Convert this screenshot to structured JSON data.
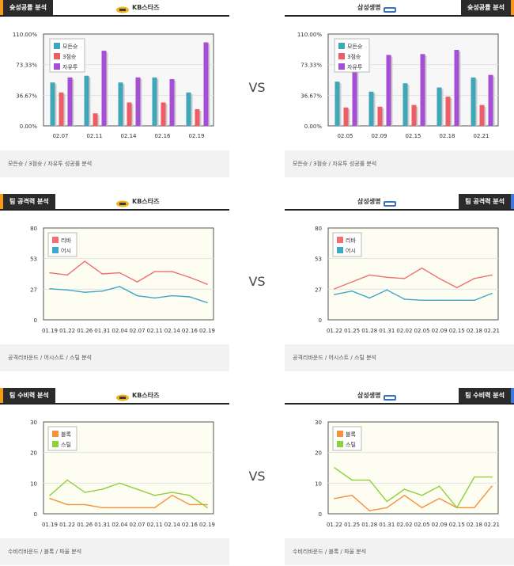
{
  "vs_label": "VS",
  "colors": {
    "total": "#3fa7b8",
    "three": "#ee5d66",
    "free": "#a64fd6",
    "rebound": "#f07070",
    "assist": "#3fa7c6",
    "block": "#f5913b",
    "steal": "#8fcf3a"
  },
  "panels": [
    {
      "tab": "슛성공률 분석",
      "tab_side": "left",
      "tab_color": "orange",
      "team": "KB스타즈",
      "team_side": "right",
      "logo": "kb-logo-icon",
      "footer": "모든슛 / 3점슛 / 자유투 성공률 분석"
    },
    {
      "tab": "슛성공률 분석",
      "tab_side": "right",
      "tab_color": "orange",
      "team": "삼성생명",
      "team_side": "left",
      "logo": "samsung-logo-icon",
      "footer": "모든슛 / 3점슛 / 자유투 성공률 분석"
    },
    {
      "tab": "팀 공격력 분석",
      "tab_side": "left",
      "tab_color": "orange",
      "team": "KB스타즈",
      "team_side": "right",
      "logo": "kb-logo-icon",
      "footer": "공격리바운드 / 어시스트 / 스틸 분석"
    },
    {
      "tab": "팀 공격력 분석",
      "tab_side": "right",
      "tab_color": "blue",
      "team": "삼성생명",
      "team_side": "left",
      "logo": "samsung-logo-icon",
      "footer": "공격리바운드 / 어시스트 / 스틸 분석"
    },
    {
      "tab": "팀 수비력 분석",
      "tab_side": "left",
      "tab_color": "orange",
      "team": "KB스타즈",
      "team_side": "right",
      "logo": "kb-logo-icon",
      "footer": "수비리바운드 / 블록 / 파울 분석"
    },
    {
      "tab": "팀 수비력 분석",
      "tab_side": "right",
      "tab_color": "blue",
      "team": "삼성생명",
      "team_side": "left",
      "logo": "samsung-logo-icon",
      "footer": "수비리바운드 / 블록 / 파울 분석"
    }
  ],
  "chart_data": [
    {
      "type": "bar",
      "categories": [
        "02.07",
        "02.11",
        "02.14",
        "02.16",
        "02.19"
      ],
      "yticks": [
        "110.00%",
        "73.33%",
        "36.67%",
        "0.00%"
      ],
      "ylim": [
        0,
        110
      ],
      "legend": "top-left",
      "series": [
        {
          "name": "모든슛",
          "values": [
            52,
            60,
            52,
            58,
            40
          ]
        },
        {
          "name": "3점슛",
          "values": [
            40,
            15,
            28,
            28,
            20
          ]
        },
        {
          "name": "자유투",
          "values": [
            58,
            90,
            58,
            56,
            100
          ]
        }
      ]
    },
    {
      "type": "bar",
      "categories": [
        "02.05",
        "02.09",
        "02.15",
        "02.18",
        "02.21"
      ],
      "yticks": [
        "110.00%",
        "73.33%",
        "36.67%",
        "0.00%"
      ],
      "ylim": [
        0,
        110
      ],
      "legend": "top-left",
      "series": [
        {
          "name": "모든슛",
          "values": [
            53,
            41,
            51,
            46,
            58
          ]
        },
        {
          "name": "3점슛",
          "values": [
            22,
            23,
            25,
            35,
            25
          ]
        },
        {
          "name": "자유투",
          "values": [
            69,
            85,
            86,
            91,
            61
          ]
        }
      ]
    },
    {
      "type": "line",
      "categories": [
        "01.19",
        "01.22",
        "01.26",
        "01.31",
        "02.04",
        "02.07",
        "02.11",
        "02.14",
        "02.16",
        "02.19"
      ],
      "yticks": [
        "80",
        "53",
        "27",
        "0"
      ],
      "ylim": [
        0,
        80
      ],
      "legend": "top-left",
      "series": [
        {
          "name": "리바",
          "values": [
            41,
            39,
            51,
            40,
            41,
            33,
            42,
            42,
            37,
            31
          ]
        },
        {
          "name": "어시",
          "values": [
            27,
            26,
            24,
            25,
            29,
            21,
            19,
            21,
            20,
            15
          ]
        }
      ]
    },
    {
      "type": "line",
      "categories": [
        "01.22",
        "01.25",
        "01.28",
        "01.31",
        "02.02",
        "02.05",
        "02.09",
        "02.15",
        "02.18",
        "02.21"
      ],
      "yticks": [
        "80",
        "53",
        "27",
        "0"
      ],
      "ylim": [
        0,
        80
      ],
      "legend": "top-left",
      "series": [
        {
          "name": "리바",
          "values": [
            27,
            33,
            39,
            37,
            36,
            45,
            36,
            28,
            36,
            39
          ]
        },
        {
          "name": "어시",
          "values": [
            22,
            25,
            19,
            26,
            18,
            17,
            17,
            17,
            17,
            23
          ]
        }
      ]
    },
    {
      "type": "line",
      "categories": [
        "01.19",
        "01.22",
        "01.26",
        "01.31",
        "02.04",
        "02.07",
        "02.11",
        "02.14",
        "02.16",
        "02.19"
      ],
      "yticks": [
        "30",
        "20",
        "10",
        "0"
      ],
      "ylim": [
        0,
        30
      ],
      "legend": "top-left",
      "series": [
        {
          "name": "블록",
          "values": [
            5,
            3,
            3,
            2,
            2,
            2,
            2,
            6,
            3,
            3
          ]
        },
        {
          "name": "스틸",
          "values": [
            6,
            11,
            7,
            8,
            10,
            8,
            6,
            7,
            6,
            2
          ]
        }
      ]
    },
    {
      "type": "line",
      "categories": [
        "01.22",
        "01.25",
        "01.28",
        "01.31",
        "02.02",
        "02.05",
        "02.09",
        "02.15",
        "02.18",
        "02.21"
      ],
      "yticks": [
        "30",
        "20",
        "10",
        "0"
      ],
      "ylim": [
        0,
        30
      ],
      "legend": "top-left",
      "series": [
        {
          "name": "블록",
          "values": [
            5,
            6,
            1,
            2,
            6,
            2,
            5,
            2,
            2,
            9
          ]
        },
        {
          "name": "스틸",
          "values": [
            15,
            11,
            11,
            4,
            8,
            6,
            9,
            2,
            12,
            12
          ]
        }
      ]
    }
  ]
}
